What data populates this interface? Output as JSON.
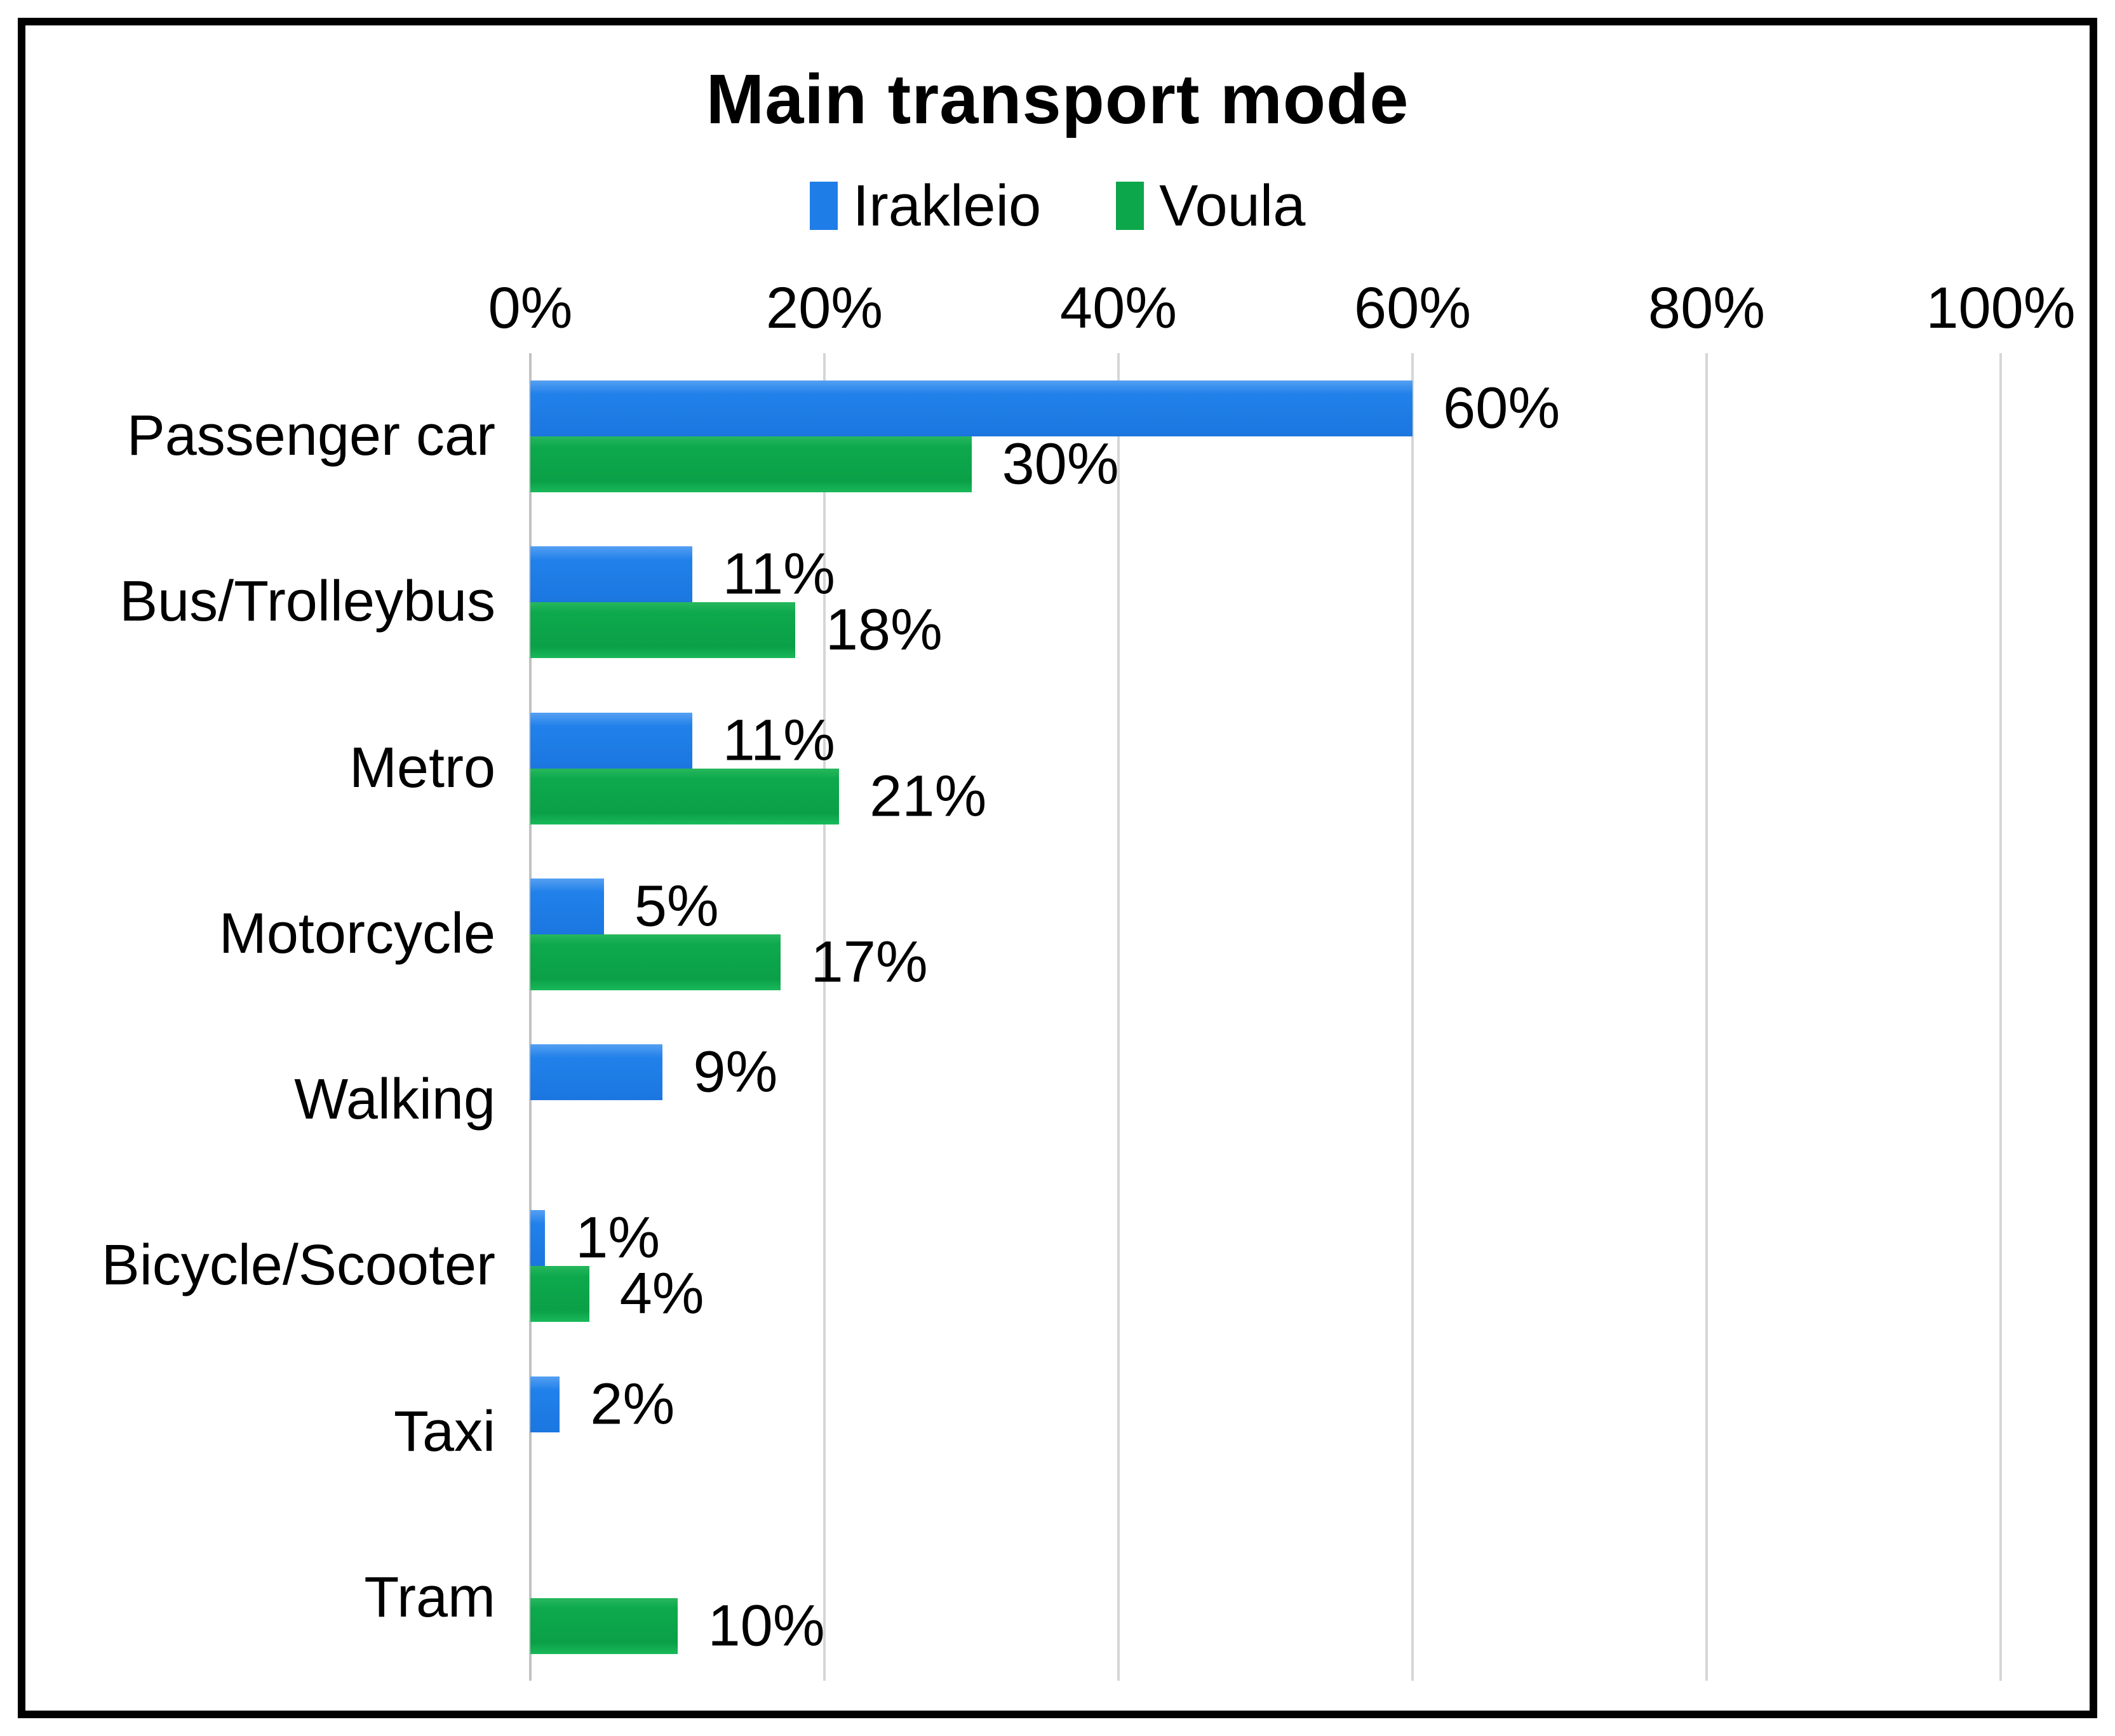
{
  "chart_data": {
    "type": "bar",
    "orientation": "horizontal",
    "title": "Main transport mode",
    "legend_position": "top",
    "grid": true,
    "xlim": [
      0,
      100
    ],
    "x_ticks": [
      "0%",
      "20%",
      "40%",
      "60%",
      "80%",
      "100%"
    ],
    "tick_step_percent": 20,
    "categories": [
      "Passenger car",
      "Bus/Trolleybus",
      "Metro",
      "Motorcycle",
      "Walking",
      "Bicycle/Scooter",
      "Taxi",
      "Tram"
    ],
    "series": [
      {
        "name": "Irakleio",
        "color": "#1f7de8",
        "values": [
          60,
          11,
          11,
          5,
          9,
          1,
          2,
          null
        ],
        "data_labels": [
          "60%",
          "11%",
          "11%",
          "5%",
          "9%",
          "1%",
          "2%",
          ""
        ]
      },
      {
        "name": "Voula",
        "color": "#0ca64b",
        "values": [
          30,
          18,
          21,
          17,
          null,
          4,
          null,
          10
        ],
        "data_labels": [
          "30%",
          "18%",
          "21%",
          "17%",
          "",
          "4%",
          "",
          "10%"
        ]
      }
    ],
    "gridline_color": "#d6d6d6"
  }
}
